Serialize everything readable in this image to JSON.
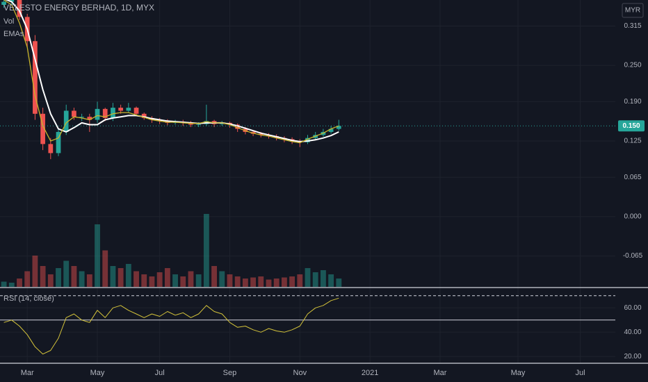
{
  "chart_data": {
    "type": "candlestick",
    "title": "VELESTO ENERGY BERHAD, 1D, MYX",
    "currency": "MYR",
    "categories": [
      null,
      null,
      null,
      "Mar",
      null,
      null,
      null,
      null,
      null,
      null,
      null,
      null,
      "May",
      null,
      null,
      null,
      null,
      null,
      null,
      null,
      "Jul",
      null,
      null,
      null,
      null,
      null,
      null,
      null,
      null,
      "Sep",
      null,
      null,
      null,
      null,
      null,
      null,
      null,
      null,
      "Nov",
      null,
      null,
      null,
      null,
      null,
      null,
      null,
      null,
      "2021",
      null,
      null,
      null,
      null,
      null,
      null,
      null,
      null,
      "Mar",
      null,
      null,
      null,
      null,
      null,
      null,
      null,
      null,
      null,
      "May",
      null,
      null,
      null,
      null,
      null,
      null,
      null,
      "Jul",
      null,
      null,
      null,
      null
    ],
    "ohlc": {
      "open": [
        0.35,
        0.355,
        0.36,
        0.33,
        0.29,
        0.17,
        0.12,
        0.105,
        0.14,
        0.175,
        0.165,
        0.165,
        0.16,
        0.178,
        0.163,
        0.18,
        0.175,
        0.18,
        0.17,
        0.163,
        0.16,
        0.158,
        0.155,
        0.157,
        0.155,
        0.152,
        0.153,
        0.158,
        0.153,
        0.155,
        0.152,
        0.145,
        0.14,
        0.137,
        0.135,
        0.133,
        0.13,
        0.128,
        0.125,
        0.123,
        0.13,
        0.135,
        0.14,
        0.145,
        null,
        null,
        null,
        null,
        null,
        null,
        null,
        null,
        null,
        null,
        null,
        null,
        null,
        null,
        null,
        null,
        null,
        null,
        null,
        null,
        null,
        null,
        null,
        null,
        null,
        null,
        null,
        null,
        null,
        null,
        null,
        null,
        null,
        null,
        null
      ],
      "high": [
        0.365,
        0.368,
        0.362,
        0.335,
        0.3,
        0.18,
        0.13,
        0.145,
        0.185,
        0.18,
        0.17,
        0.17,
        0.19,
        0.18,
        0.188,
        0.185,
        0.188,
        0.182,
        0.172,
        0.166,
        0.163,
        0.161,
        0.16,
        0.16,
        0.158,
        0.156,
        0.185,
        0.16,
        0.158,
        0.157,
        0.154,
        0.148,
        0.142,
        0.14,
        0.138,
        0.136,
        0.133,
        0.131,
        0.128,
        0.135,
        0.14,
        0.145,
        0.15,
        0.16,
        null,
        null,
        null,
        null,
        null,
        null,
        null,
        null,
        null,
        null,
        null,
        null,
        null,
        null,
        null,
        null,
        null,
        null,
        null,
        null,
        null,
        null,
        null,
        null,
        null,
        null,
        null,
        null,
        null,
        null,
        null,
        null,
        null,
        null,
        null
      ],
      "low": [
        0.345,
        0.35,
        0.325,
        0.28,
        0.16,
        0.11,
        0.095,
        0.1,
        0.135,
        0.16,
        0.158,
        0.14,
        0.155,
        0.158,
        0.158,
        0.17,
        0.172,
        0.166,
        0.16,
        0.155,
        0.153,
        0.151,
        0.152,
        0.15,
        0.148,
        0.148,
        0.15,
        0.148,
        0.15,
        0.147,
        0.14,
        0.136,
        0.133,
        0.131,
        0.129,
        0.126,
        0.123,
        0.12,
        0.115,
        0.12,
        0.127,
        0.132,
        0.137,
        0.142,
        null,
        null,
        null,
        null,
        null,
        null,
        null,
        null,
        null,
        null,
        null,
        null,
        null,
        null,
        null,
        null,
        null,
        null,
        null,
        null,
        null,
        null,
        null,
        null,
        null,
        null,
        null,
        null,
        null,
        null,
        null,
        null,
        null,
        null,
        null
      ],
      "close": [
        0.355,
        0.36,
        0.33,
        0.29,
        0.17,
        0.12,
        0.105,
        0.14,
        0.175,
        0.165,
        0.165,
        0.16,
        0.178,
        0.163,
        0.18,
        0.175,
        0.18,
        0.17,
        0.163,
        0.16,
        0.158,
        0.155,
        0.157,
        0.155,
        0.152,
        0.153,
        0.158,
        0.153,
        0.155,
        0.152,
        0.145,
        0.14,
        0.137,
        0.135,
        0.133,
        0.13,
        0.128,
        0.125,
        0.123,
        0.13,
        0.135,
        0.14,
        0.145,
        0.15,
        null,
        null,
        null,
        null,
        null,
        null,
        null,
        null,
        null,
        null,
        null,
        null,
        null,
        null,
        null,
        null,
        null,
        null,
        null,
        null,
        null,
        null,
        null,
        null,
        null,
        null,
        null,
        null,
        null,
        null,
        null,
        null,
        null,
        null,
        null
      ]
    },
    "up_color": "#26a69a",
    "down_color": "#ef5350",
    "volume": {
      "name": "Vol",
      "values": [
        5,
        4,
        8,
        15,
        30,
        20,
        12,
        18,
        25,
        20,
        15,
        12,
        60,
        35,
        20,
        18,
        22,
        15,
        12,
        10,
        14,
        18,
        12,
        10,
        15,
        12,
        70,
        20,
        15,
        12,
        10,
        8,
        9,
        10,
        7,
        8,
        9,
        10,
        12,
        18,
        14,
        16,
        12,
        8,
        null,
        null,
        null,
        null,
        null,
        null,
        null,
        null,
        null,
        null,
        null,
        null,
        null,
        null,
        null,
        null,
        null,
        null,
        null,
        null,
        null,
        null,
        null,
        null,
        null,
        null,
        null,
        null,
        null,
        null,
        null,
        null,
        null,
        null,
        null
      ]
    },
    "emas": {
      "label": "EMAs",
      "lines": [
        {
          "color": "#ffffff",
          "values": [
            0.36,
            0.355,
            0.34,
            0.31,
            0.26,
            0.21,
            0.17,
            0.145,
            0.14,
            0.147,
            0.155,
            0.152,
            0.152,
            0.16,
            0.163,
            0.165,
            0.167,
            0.167,
            0.165,
            0.162,
            0.16,
            0.158,
            0.157,
            0.156,
            0.155,
            0.154,
            0.155,
            0.155,
            0.155,
            0.153,
            0.15,
            0.146,
            0.142,
            0.138,
            0.135,
            0.132,
            0.129,
            0.126,
            0.124,
            0.125,
            0.127,
            0.13,
            0.134,
            0.14,
            null,
            null,
            null,
            null,
            null,
            null,
            null,
            null,
            null,
            null,
            null,
            null,
            null,
            null,
            null,
            null,
            null,
            null,
            null,
            null,
            null,
            null,
            null,
            null,
            null,
            null,
            null,
            null,
            null,
            null,
            null,
            null,
            null,
            null,
            null
          ]
        },
        {
          "color": "#c9b52c",
          "values": [
            0.358,
            0.35,
            0.32,
            0.28,
            0.2,
            0.15,
            0.125,
            0.13,
            0.155,
            0.165,
            0.163,
            0.16,
            0.167,
            0.165,
            0.17,
            0.172,
            0.172,
            0.168,
            0.164,
            0.16,
            0.158,
            0.156,
            0.156,
            0.155,
            0.154,
            0.154,
            0.157,
            0.155,
            0.155,
            0.152,
            0.147,
            0.142,
            0.138,
            0.135,
            0.133,
            0.13,
            0.127,
            0.124,
            0.122,
            0.128,
            0.133,
            0.138,
            0.145,
            0.15,
            null,
            null,
            null,
            null,
            null,
            null,
            null,
            null,
            null,
            null,
            null,
            null,
            null,
            null,
            null,
            null,
            null,
            null,
            null,
            null,
            null,
            null,
            null,
            null,
            null,
            null,
            null,
            null,
            null,
            null,
            null,
            null,
            null,
            null,
            null
          ]
        }
      ]
    },
    "ylim": [
      -0.116,
      0.358
    ],
    "yticks": [
      {
        "value": 0.315,
        "label": "0.315"
      },
      {
        "value": 0.25,
        "label": "0.250"
      },
      {
        "value": 0.19,
        "label": "0.190"
      },
      {
        "value": 0.125,
        "label": "0.125"
      },
      {
        "value": 0.065,
        "label": "0.065"
      },
      {
        "value": 0,
        "label": "0.000"
      },
      {
        "value": -0.065,
        "label": "-0.065"
      }
    ],
    "last_price": {
      "value": 0.15,
      "label": "0.150"
    },
    "rsi": {
      "label": "RSI (14, close)",
      "color": "#d4c33a",
      "values": [
        48,
        50,
        45,
        38,
        28,
        22,
        25,
        35,
        52,
        55,
        50,
        48,
        58,
        52,
        60,
        62,
        58,
        55,
        52,
        55,
        53,
        57,
        54,
        56,
        52,
        55,
        62,
        57,
        55,
        48,
        44,
        45,
        42,
        40,
        43,
        41,
        40,
        42,
        45,
        55,
        60,
        62,
        66,
        68,
        null,
        null,
        null,
        null,
        null,
        null,
        null,
        null,
        null,
        null,
        null,
        null,
        null,
        null,
        null,
        null,
        null,
        null,
        null,
        null,
        null,
        null,
        null,
        null,
        null,
        null,
        null,
        null,
        null,
        null,
        null,
        null,
        null,
        null,
        null
      ],
      "ylim": [
        15,
        75
      ],
      "yticks": [
        {
          "value": 60,
          "label": "60.00"
        },
        {
          "value": 40,
          "label": "40.00"
        },
        {
          "value": 20,
          "label": "20.00"
        }
      ],
      "levels": [
        70,
        50
      ]
    }
  }
}
